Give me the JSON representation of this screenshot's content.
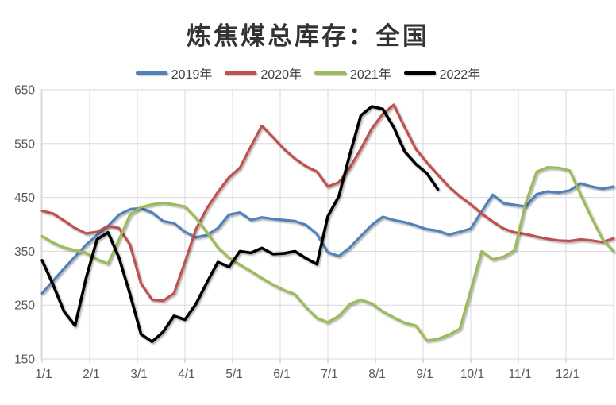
{
  "chart_data": {
    "type": "line",
    "title": "炼焦煤总库存：全国",
    "legend_position": "top",
    "grid": true,
    "background": "#ffffff",
    "gridline_color": "#d9d9d9",
    "axis_line_color": "#bfbfbf",
    "axis_text_color": "#595959",
    "x_tick_labels": [
      "1/1",
      "2/1",
      "3/1",
      "4/1",
      "5/1",
      "6/1",
      "7/1",
      "8/1",
      "9/1",
      "10/1",
      "11/1",
      "12/1"
    ],
    "x_unit": "weekly points across one year",
    "y_axis": {
      "min": 150,
      "max": 650,
      "step": 100,
      "tick_labels": [
        "650",
        "550",
        "450",
        "350",
        "250",
        "150"
      ]
    },
    "series": [
      {
        "name": "2019年",
        "color": "#4F81BD",
        "values": [
          272,
          295,
          318,
          340,
          362,
          380,
          397,
          418,
          428,
          430,
          422,
          406,
          402,
          386,
          376,
          380,
          393,
          418,
          422,
          408,
          413,
          410,
          408,
          406,
          399,
          382,
          348,
          341,
          357,
          378,
          399,
          414,
          408,
          404,
          398,
          391,
          388,
          381,
          386,
          392,
          424,
          455,
          439,
          436,
          433,
          456,
          461,
          459,
          463,
          476,
          470,
          466,
          470
        ]
      },
      {
        "name": "2020年",
        "color": "#C0504D",
        "values": [
          425,
          420,
          407,
          393,
          383,
          386,
          397,
          393,
          362,
          290,
          260,
          258,
          272,
          330,
          391,
          430,
          460,
          487,
          505,
          545,
          583,
          562,
          540,
          522,
          508,
          498,
          470,
          478,
          505,
          540,
          578,
          605,
          622,
          580,
          540,
          515,
          492,
          470,
          452,
          437,
          420,
          405,
          392,
          385,
          382,
          377,
          373,
          370,
          369,
          372,
          370,
          367,
          374
        ]
      },
      {
        "name": "2021年",
        "color": "#9BBB59",
        "values": [
          378,
          366,
          357,
          352,
          347,
          335,
          327,
          372,
          418,
          432,
          437,
          440,
          437,
          433,
          412,
          385,
          357,
          338,
          325,
          313,
          300,
          288,
          278,
          270,
          246,
          226,
          218,
          230,
          252,
          260,
          253,
          238,
          227,
          217,
          212,
          184,
          187,
          195,
          206,
          278,
          350,
          335,
          340,
          352,
          440,
          498,
          506,
          505,
          500,
          455,
          412,
          372,
          350
        ]
      },
      {
        "name": "2022年",
        "color": "#000000",
        "values": [
          333,
          288,
          238,
          212,
          300,
          372,
          385,
          338,
          270,
          196,
          182,
          200,
          230,
          223,
          252,
          292,
          330,
          321,
          350,
          347,
          356,
          345,
          346,
          350,
          337,
          326,
          415,
          452,
          530,
          602,
          619,
          614,
          580,
          535,
          512,
          495,
          465
        ]
      }
    ]
  }
}
